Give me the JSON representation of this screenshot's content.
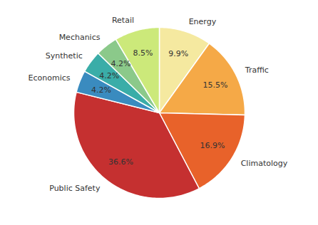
{
  "chart_data": {
    "type": "pie",
    "categories": [
      "Energy",
      "Traffic",
      "Climatology",
      "Public Safety",
      "Economics",
      "Synthetic",
      "Mechanics",
      "Retail"
    ],
    "values": [
      9.9,
      15.5,
      16.9,
      36.6,
      4.2,
      4.2,
      4.2,
      8.5
    ],
    "value_labels": [
      "9.9%",
      "15.5%",
      "16.9%",
      "36.6%",
      "4.2%",
      "4.2%",
      "4.2%",
      "8.5%"
    ],
    "colors": [
      "#f5e9a0",
      "#f5a947",
      "#e8622a",
      "#c53030",
      "#3a8bbf",
      "#3aada8",
      "#8bc98a",
      "#cce97a"
    ],
    "data_labels": true
  }
}
